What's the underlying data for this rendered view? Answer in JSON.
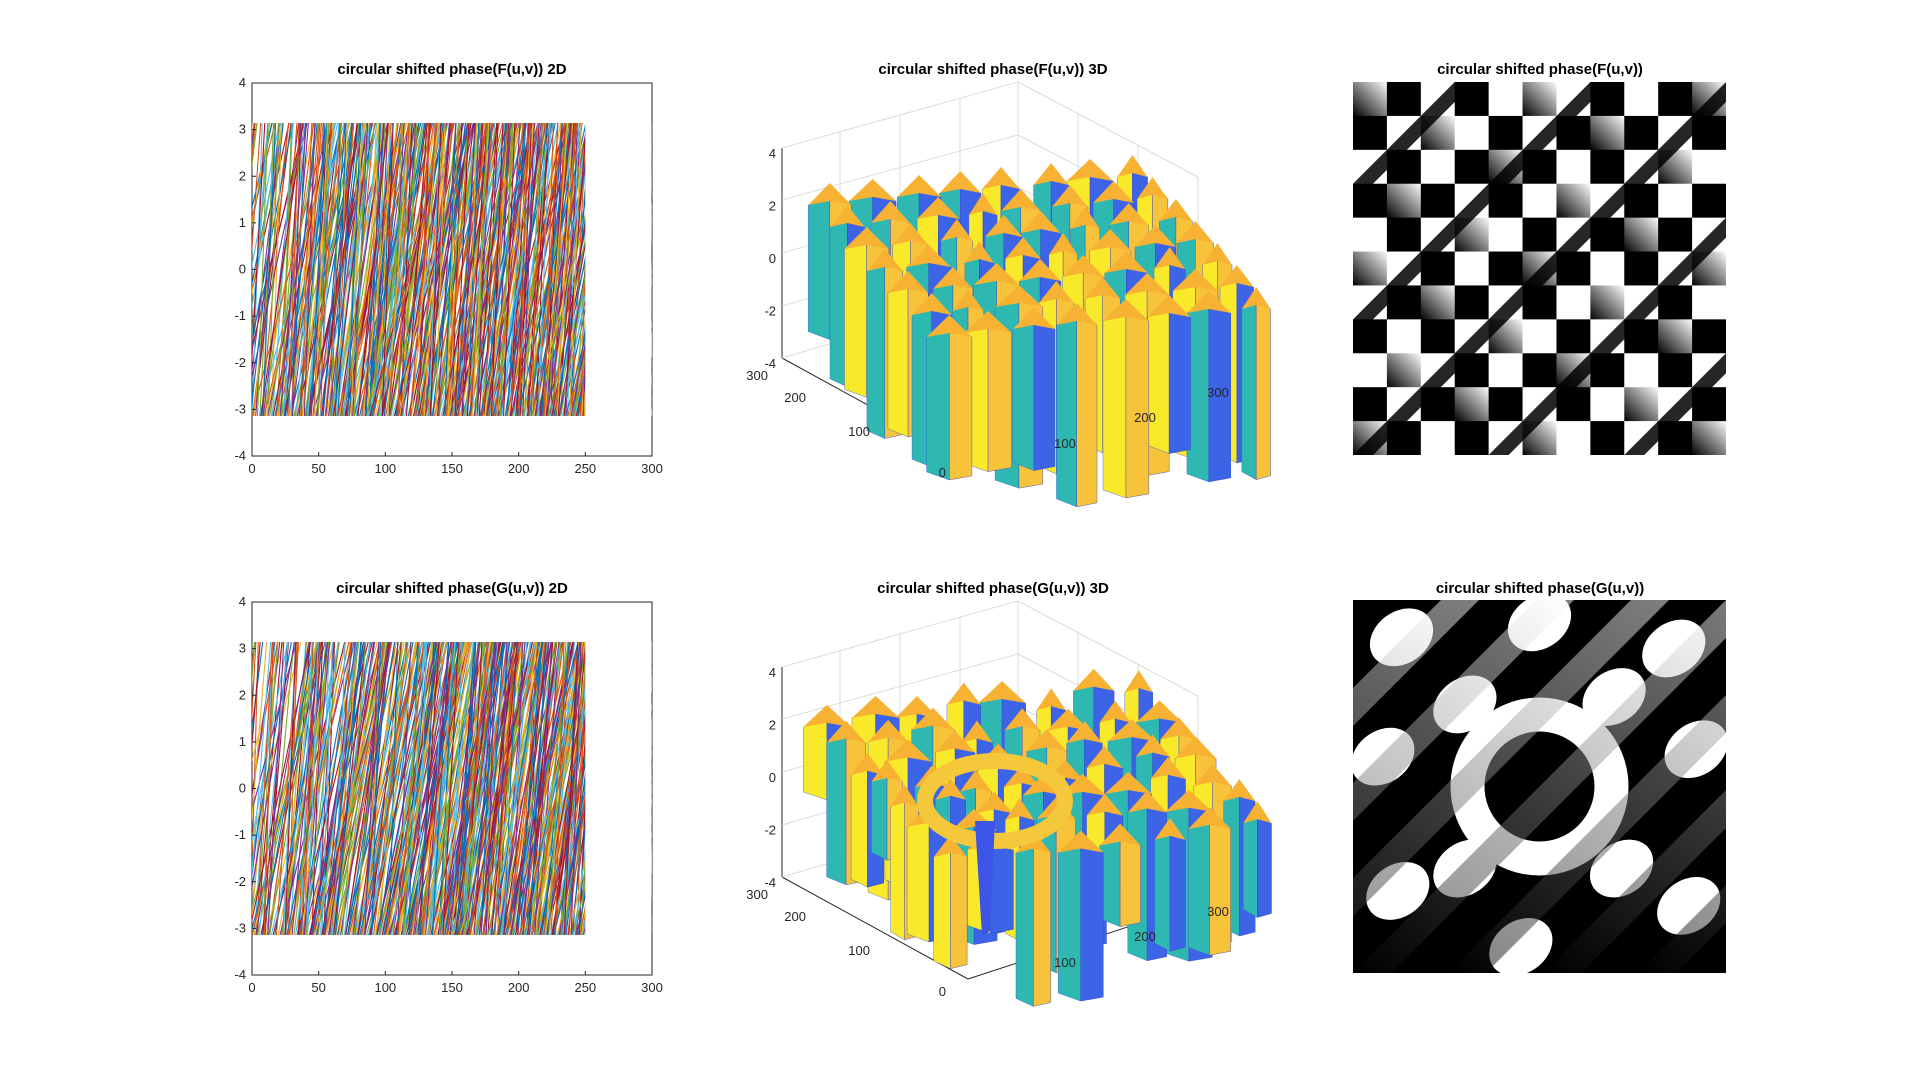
{
  "figure": {
    "panels": [
      {
        "title": "circular shifted phase(F(u,v)) 2D"
      },
      {
        "title": "circular shifted phase(F(u,v)) 3D"
      },
      {
        "title": "circular shifted phase(F(u,v))"
      },
      {
        "title": "circular shifted phase(G(u,v)) 2D"
      },
      {
        "title": "circular shifted phase(G(u,v)) 3D"
      },
      {
        "title": "circular shifted phase(G(u,v))"
      }
    ]
  },
  "chart_data": [
    {
      "type": "line",
      "title": "circular shifted phase(F(u,v)) 2D",
      "xlim": [
        0,
        300
      ],
      "ylim": [
        -4,
        4
      ],
      "xticks": [
        "0",
        "50",
        "100",
        "150",
        "200",
        "250",
        "300"
      ],
      "yticks": [
        "4",
        "3",
        "2",
        "1",
        "0",
        "-1",
        "-2",
        "-3",
        "-4"
      ],
      "x_extent": [
        0,
        250
      ],
      "y_extent": [
        -3.1416,
        3.1416
      ],
      "series_count": 250
    },
    {
      "type": "surface",
      "title": "circular shifted phase(F(u,v)) 3D",
      "zticks": [
        "4",
        "2",
        "0",
        "-2",
        "-4"
      ],
      "yticks": [
        "300",
        "200",
        "100",
        "0"
      ],
      "xticks": [
        "100",
        "200",
        "300"
      ],
      "zlim": [
        -4,
        4
      ]
    },
    {
      "type": "heatmap",
      "title": "circular shifted phase(F(u,v))",
      "colormap": "gray",
      "range": [
        -3.1416,
        3.1416
      ]
    },
    {
      "type": "line",
      "title": "circular shifted phase(G(u,v)) 2D",
      "xlim": [
        0,
        300
      ],
      "ylim": [
        -4,
        4
      ],
      "xticks": [
        "0",
        "50",
        "100",
        "150",
        "200",
        "250",
        "300"
      ],
      "yticks": [
        "4",
        "3",
        "2",
        "1",
        "0",
        "-1",
        "-2",
        "-3",
        "-4"
      ],
      "x_extent": [
        0,
        250
      ],
      "y_extent": [
        -3.1416,
        3.1416
      ],
      "series_count": 250
    },
    {
      "type": "surface",
      "title": "circular shifted phase(G(u,v)) 3D",
      "zticks": [
        "4",
        "2",
        "0",
        "-2",
        "-4"
      ],
      "yticks": [
        "300",
        "200",
        "100",
        "0"
      ],
      "xticks": [
        "100",
        "200",
        "300"
      ],
      "zlim": [
        -4,
        4
      ]
    },
    {
      "type": "heatmap",
      "title": "circular shifted phase(G(u,v))",
      "colormap": "gray",
      "range": [
        -3.1416,
        3.1416
      ]
    }
  ]
}
